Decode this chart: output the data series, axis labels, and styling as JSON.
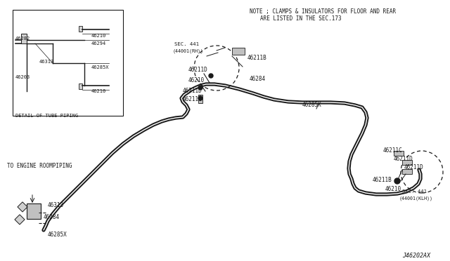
{
  "bg_color": "#ffffff",
  "line_color": "#1a1a1a",
  "fig_w": 6.4,
  "fig_h": 3.72,
  "dpi": 100,
  "note_text1": "NOTE ; CLAMPS & INSULATORS FOR FLOOR AND REAR",
  "note_text2": "ARE LISTED IN THE SEC.173",
  "part_id": "J46202AX",
  "detail_label": "DETAIL OF TUBE PIPING",
  "engine_label": "TO ENGINE ROOMPIPING"
}
